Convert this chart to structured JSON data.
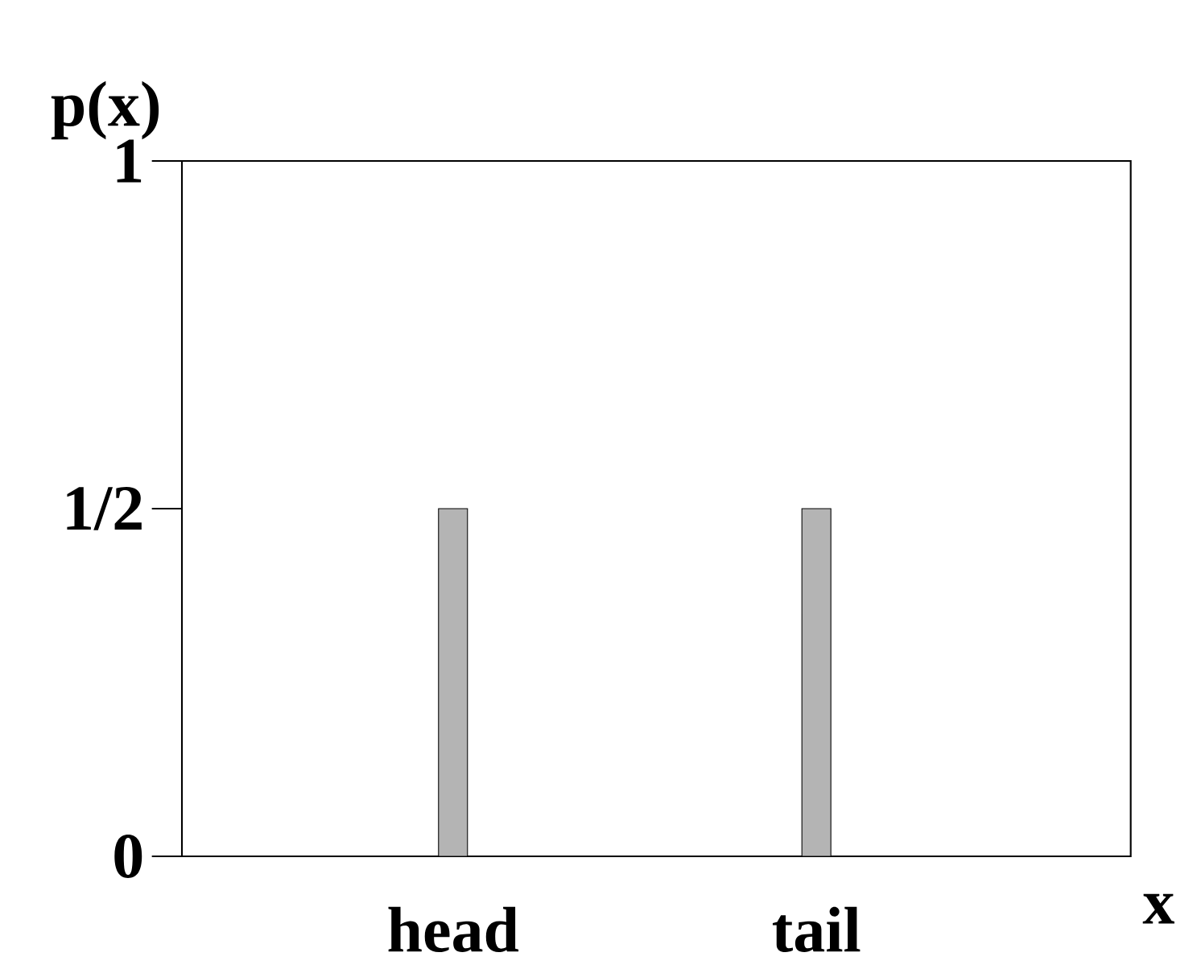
{
  "chart_data": {
    "type": "bar",
    "xlabel": "x",
    "ylabel": "p(x)",
    "categories": [
      "head",
      "tail"
    ],
    "values": [
      0.5,
      0.5
    ],
    "color": "#b4b4b4",
    "ylim": [
      0,
      1
    ],
    "yticks": [
      0,
      {
        "value": 0.5,
        "label": "1/2"
      },
      1
    ]
  }
}
